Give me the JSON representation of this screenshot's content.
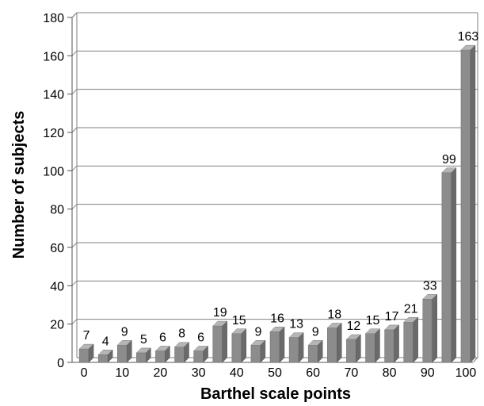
{
  "chart_data": {
    "type": "bar",
    "categories": [
      0,
      5,
      10,
      15,
      20,
      25,
      30,
      35,
      40,
      45,
      50,
      55,
      60,
      65,
      70,
      75,
      80,
      85,
      90,
      95,
      100
    ],
    "values": [
      7,
      4,
      9,
      5,
      6,
      8,
      6,
      19,
      15,
      9,
      16,
      13,
      9,
      18,
      12,
      15,
      17,
      21,
      33,
      99,
      163
    ],
    "x_tick_labels": [
      "0",
      "10",
      "20",
      "30",
      "40",
      "50",
      "60",
      "70",
      "80",
      "90",
      "100"
    ],
    "y_tick_labels": [
      "0",
      "20",
      "40",
      "60",
      "80",
      "100",
      "120",
      "140",
      "160",
      "180"
    ],
    "xlabel": "Barthel scale points",
    "ylabel": "Number of subjects",
    "ylim": [
      0,
      180
    ],
    "grid": true,
    "colors": {
      "bar": "#8c8c8c",
      "grid": "#7f7f7f"
    }
  }
}
